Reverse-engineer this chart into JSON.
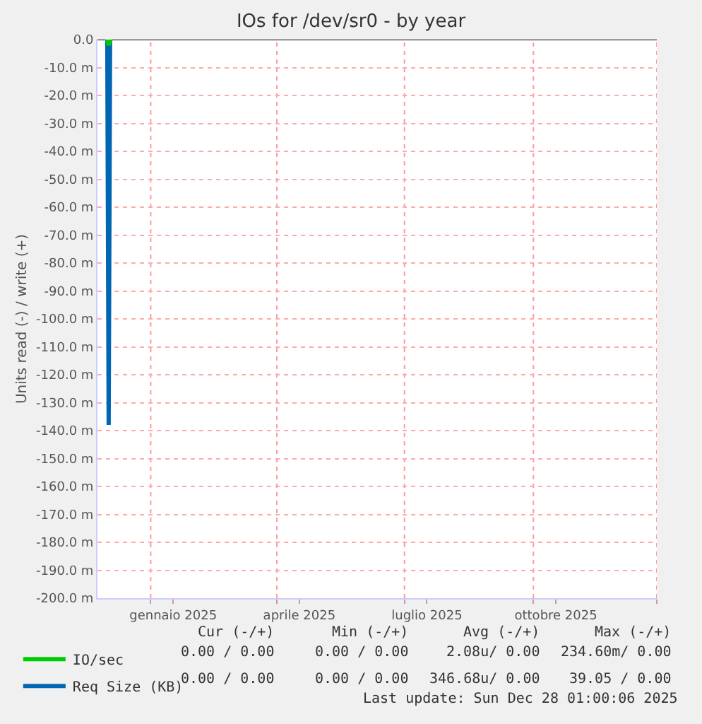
{
  "chart_data": {
    "type": "line",
    "title": "IOs for /dev/sr0 - by year",
    "ylabel": "Units read (-) / write (+)",
    "xlim": [
      "2024-11-24",
      "2025-12-28"
    ],
    "xticks": [
      {
        "value": "2025-01-01",
        "label": null
      },
      {
        "value": "2025-01-17",
        "label": "gennaio 2025"
      },
      {
        "value": "2025-04-01",
        "label": null
      },
      {
        "value": "2025-04-17",
        "label": "aprile 2025"
      },
      {
        "value": "2025-07-01",
        "label": null
      },
      {
        "value": "2025-07-17",
        "label": "luglio 2025"
      },
      {
        "value": "2025-10-01",
        "label": null
      },
      {
        "value": "2025-10-17",
        "label": "ottobre 2025"
      },
      {
        "value": "2025-12-28",
        "label": null
      }
    ],
    "ylim": [
      -200,
      0
    ],
    "yticks": [
      {
        "value": 0,
        "label": "0.0"
      },
      {
        "value": -10,
        "label": "-10.0 m"
      },
      {
        "value": -20,
        "label": "-20.0 m"
      },
      {
        "value": -30,
        "label": "-30.0 m"
      },
      {
        "value": -40,
        "label": "-40.0 m"
      },
      {
        "value": -50,
        "label": "-50.0 m"
      },
      {
        "value": -60,
        "label": "-60.0 m"
      },
      {
        "value": -70,
        "label": "-70.0 m"
      },
      {
        "value": -80,
        "label": "-80.0 m"
      },
      {
        "value": -90,
        "label": "-90.0 m"
      },
      {
        "value": -100,
        "label": "-100.0 m"
      },
      {
        "value": -110,
        "label": "-110.0 m"
      },
      {
        "value": -120,
        "label": "-120.0 m"
      },
      {
        "value": -130,
        "label": "-130.0 m"
      },
      {
        "value": -140,
        "label": "-140.0 m"
      },
      {
        "value": -150,
        "label": "-150.0 m"
      },
      {
        "value": -160,
        "label": "-160.0 m"
      },
      {
        "value": -170,
        "label": "-170.0 m"
      },
      {
        "value": -180,
        "label": "-180.0 m"
      },
      {
        "value": -190,
        "label": "-190.0 m"
      },
      {
        "value": -200,
        "label": "-200.0 m"
      }
    ],
    "series": [
      {
        "name": "Req Size (KB)",
        "color": "#0066b3",
        "x": [
          "2024-12-01",
          "2024-12-02",
          "2024-12-03"
        ],
        "values": [
          0,
          -138,
          0
        ]
      },
      {
        "name": "IO/sec",
        "color": "#00cc00",
        "x": [
          "2024-12-01",
          "2024-12-02",
          "2024-12-03"
        ],
        "values": [
          0,
          -2,
          0
        ]
      }
    ],
    "ref_lines": [
      {
        "axis": "y",
        "value": 0,
        "color": "#000000"
      }
    ],
    "grid": true,
    "legend": "bottom left",
    "marker": "none",
    "line_style": "solid",
    "annotations": [
      "Cur (-/+)",
      "Min (-/+)",
      "Avg (-/+)",
      "Max (-/+)",
      "0.00 / 0.00",
      "0.00 / 0.00",
      "2.08u/ 0.00",
      "234.60m/ 0.00",
      "0.00 / 0.00",
      "0.00 / 0.00",
      "346.68u/ 0.00",
      "39.05 / 0.00",
      "Last update: Sun Dec 28 01:00:06 2025"
    ]
  }
}
